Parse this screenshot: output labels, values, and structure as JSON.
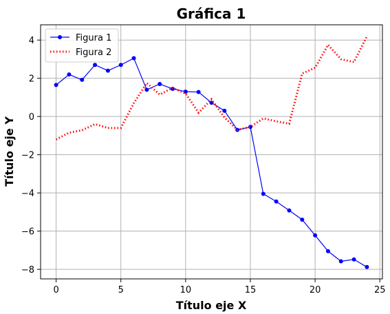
{
  "chart_data": {
    "type": "line",
    "title": "Gráfica 1",
    "xlabel": "Título eje X",
    "ylabel": "Título eje Y",
    "xlim": [
      -1.2,
      25.2
    ],
    "ylim": [
      -8.5,
      4.8
    ],
    "xticks": [
      0,
      5,
      10,
      15,
      20,
      25
    ],
    "yticks": [
      4,
      2,
      0,
      -2,
      -4,
      -6,
      -8
    ],
    "xtick_labels": [
      "0",
      "5",
      "10",
      "15",
      "20",
      "25"
    ],
    "ytick_labels": [
      "4",
      "2",
      "0",
      "−2",
      "−4",
      "−6",
      "−8"
    ],
    "grid": true,
    "legend_position": "top-left",
    "x": [
      0,
      1,
      2,
      3,
      4,
      5,
      6,
      7,
      8,
      9,
      10,
      11,
      12,
      13,
      14,
      15,
      16,
      17,
      18,
      19,
      20,
      21,
      22,
      23,
      24
    ],
    "series": [
      {
        "name": "Figura 1",
        "color": "#0000ff",
        "style": "solid-markers",
        "values": [
          1.65,
          2.2,
          1.92,
          2.7,
          2.4,
          2.7,
          3.05,
          1.4,
          1.7,
          1.45,
          1.3,
          1.28,
          0.72,
          0.3,
          -0.7,
          -0.55,
          -4.05,
          -4.45,
          -4.92,
          -5.4,
          -6.22,
          -7.05,
          -7.58,
          -7.48,
          -7.88
        ]
      },
      {
        "name": "Figura 2",
        "color": "#ff0000",
        "style": "dotted",
        "values": [
          -1.2,
          -0.85,
          -0.72,
          -0.4,
          -0.6,
          -0.6,
          0.7,
          1.75,
          1.15,
          1.5,
          1.2,
          0.2,
          0.9,
          -0.05,
          -0.7,
          -0.55,
          -0.1,
          -0.25,
          -0.38,
          2.25,
          2.55,
          3.75,
          3.0,
          2.85,
          4.2
        ]
      }
    ]
  }
}
